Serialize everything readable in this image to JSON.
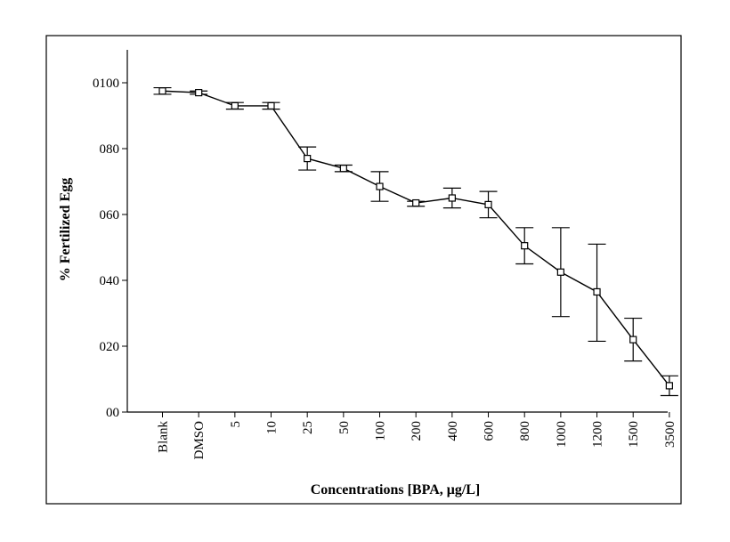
{
  "chart_data": {
    "type": "line",
    "title": "",
    "xlabel": "Concentrations [BPA,  μg/L]",
    "ylabel": "% Fertilized Egg",
    "categories": [
      "Blank",
      "DMSO",
      "5",
      "10",
      "25",
      "50",
      "100",
      "200",
      "400",
      "600",
      "800",
      "1000",
      "1200",
      "1500",
      "3500"
    ],
    "values": [
      97.5,
      97,
      93,
      93,
      77,
      74,
      68.5,
      63.5,
      65,
      63,
      50.5,
      42.5,
      36.5,
      22,
      8
    ],
    "error_low": [
      96.5,
      96.5,
      92,
      92,
      73.5,
      73,
      64,
      62.5,
      62,
      59,
      45,
      29,
      21.5,
      15.5,
      5
    ],
    "error_high": [
      98.5,
      97.5,
      94,
      94,
      80.5,
      75,
      73,
      64,
      68,
      67,
      56,
      56,
      51,
      28.5,
      11
    ],
    "y_tick_labels": [
      "00",
      "020",
      "040",
      "060",
      "080",
      "0100"
    ],
    "y_tick_values": [
      0,
      20,
      40,
      60,
      80,
      100
    ],
    "ylim": [
      0,
      110
    ],
    "grid": false,
    "legend": "none",
    "colors": {
      "line": "#000000",
      "marker_fill": "#ffffff",
      "frame": "#000000"
    }
  }
}
